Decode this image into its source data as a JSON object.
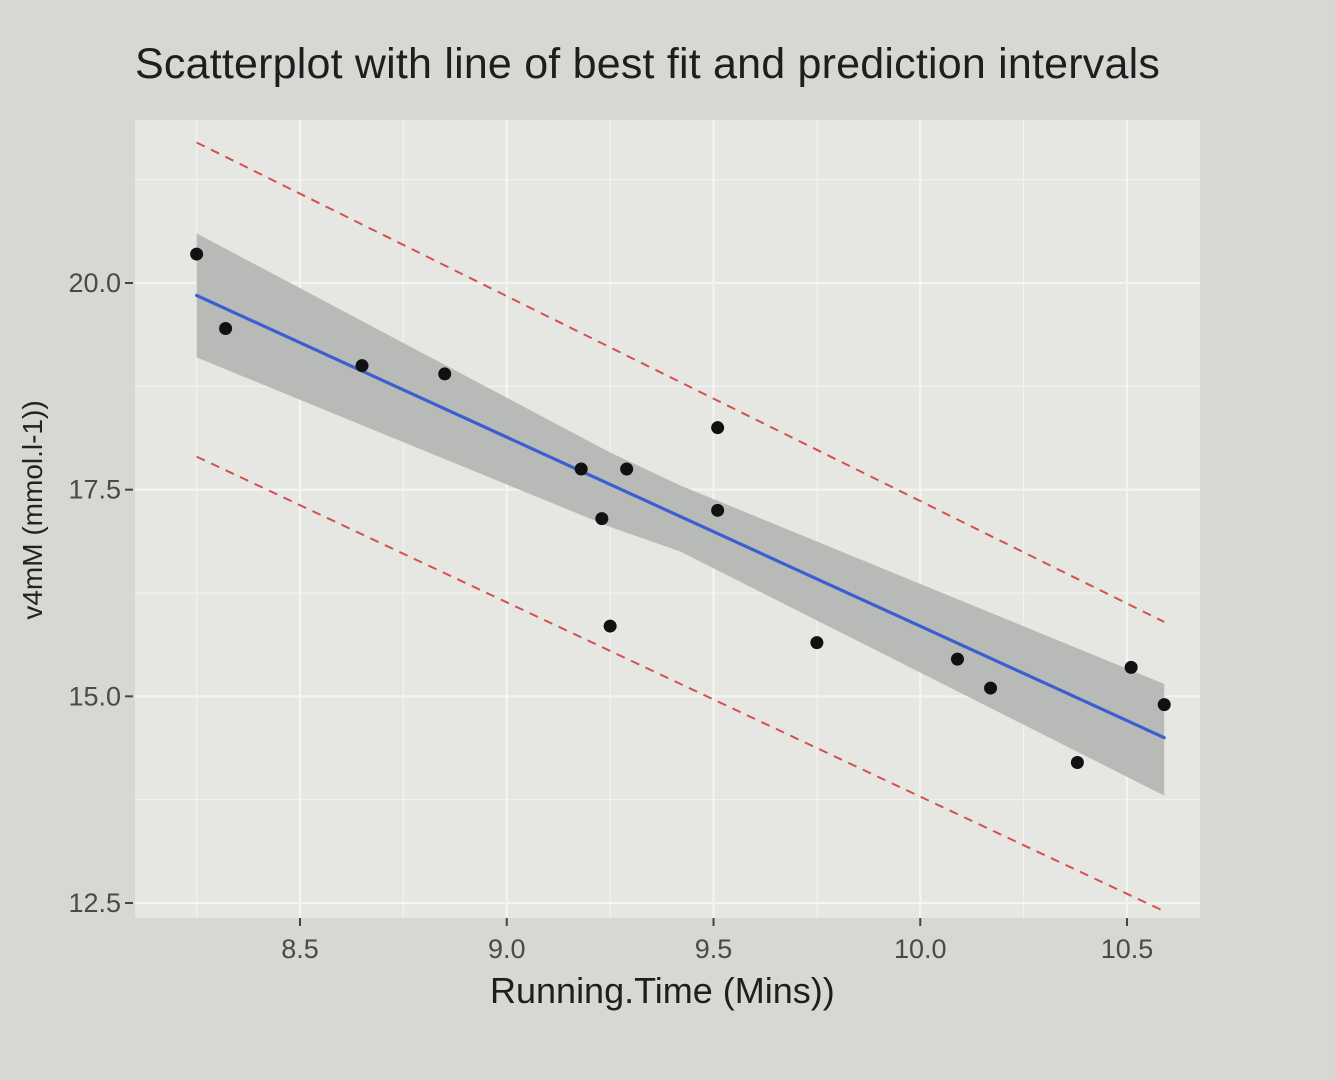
{
  "colors": {
    "panel": "#e6e7e3",
    "grid": "#f4f4f2",
    "points": "#111111",
    "fit_line": "#3a5fd0",
    "confidence_band": "#b3b5b1",
    "prediction_interval": "#d55050"
  },
  "chart_data": {
    "type": "scatter",
    "title": "Scatterplot with line of best fit and prediction intervals",
    "xlabel": "Running.Time (Mins))",
    "ylabel": "v4mM (mmol.l-1))",
    "xlim": [
      8.22,
      10.65
    ],
    "ylim": [
      12.4,
      22.0
    ],
    "x_ticks": [
      8.5,
      9.0,
      9.5,
      10.0,
      10.5
    ],
    "x_tick_labels": [
      "8.5",
      "9.0",
      "9.5",
      "10.0",
      "10.5"
    ],
    "y_ticks": [
      12.5,
      15.0,
      17.5,
      20.0
    ],
    "y_tick_labels": [
      "12.5",
      "15.0",
      "17.5",
      "20.0"
    ],
    "grid": true,
    "points": [
      {
        "x": 8.25,
        "y": 20.35
      },
      {
        "x": 8.32,
        "y": 19.45
      },
      {
        "x": 8.65,
        "y": 19.0
      },
      {
        "x": 8.85,
        "y": 18.9
      },
      {
        "x": 9.18,
        "y": 17.75
      },
      {
        "x": 9.23,
        "y": 17.15
      },
      {
        "x": 9.25,
        "y": 15.85
      },
      {
        "x": 9.29,
        "y": 17.75
      },
      {
        "x": 9.51,
        "y": 18.25
      },
      {
        "x": 9.51,
        "y": 17.25
      },
      {
        "x": 9.75,
        "y": 15.65
      },
      {
        "x": 10.09,
        "y": 15.45
      },
      {
        "x": 10.17,
        "y": 15.1
      },
      {
        "x": 10.38,
        "y": 14.2
      },
      {
        "x": 10.51,
        "y": 15.35
      },
      {
        "x": 10.59,
        "y": 14.9
      }
    ],
    "fit_line": {
      "x": [
        8.25,
        10.59
      ],
      "y": [
        19.85,
        14.5
      ]
    },
    "confidence_band": [
      {
        "x": 8.25,
        "lower": 19.1,
        "upper": 20.6
      },
      {
        "x": 9.25,
        "lower": 17.05,
        "upper": 17.95
      },
      {
        "x": 9.42,
        "lower": 16.75,
        "upper": 17.55
      },
      {
        "x": 10.59,
        "lower": 13.8,
        "upper": 15.15
      }
    ],
    "prediction_interval": {
      "x": [
        8.25,
        10.59
      ],
      "upper": [
        21.7,
        15.9
      ],
      "lower": [
        17.9,
        12.4
      ]
    }
  }
}
